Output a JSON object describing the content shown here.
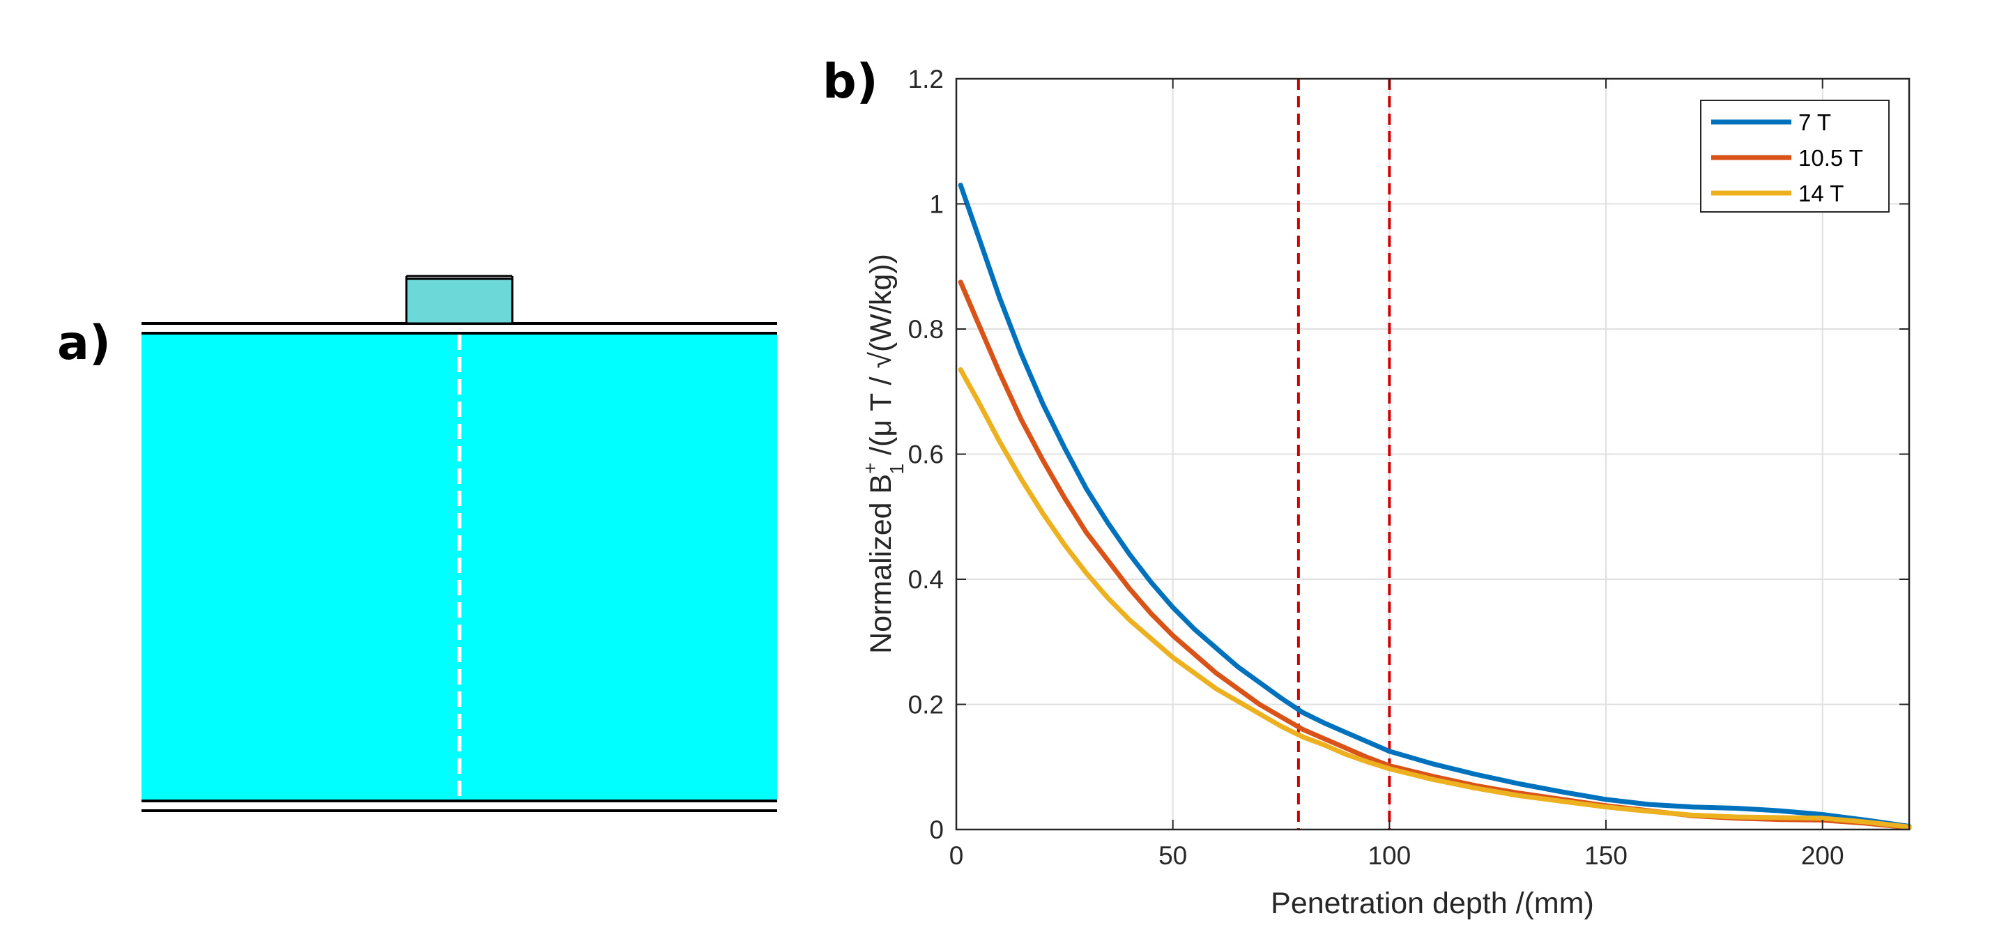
{
  "panel_a": {
    "label": "a)",
    "colors": {
      "phantom": "#00ffff",
      "coil": "#6dd8d8",
      "outline": "#000000",
      "profile_line": "#ffffff"
    }
  },
  "chart_data": {
    "type": "line",
    "panel_label": "b)",
    "title": "",
    "xlabel": "Penetration depth /(mm)",
    "ylabel": {
      "prefix": "Normalized B",
      "superscript": "+",
      "subscript": "1",
      "suffix": " /(μ T / √(W/kg))"
    },
    "xlim": [
      0,
      220
    ],
    "ylim": [
      0,
      1.2
    ],
    "xticks": [
      0,
      50,
      100,
      150,
      200
    ],
    "yticks": [
      0,
      0.2,
      0.4,
      0.6,
      0.8,
      1,
      1.2
    ],
    "xtick_labels": [
      "0",
      "50",
      "100",
      "150",
      "200"
    ],
    "ytick_labels": [
      "0",
      "0.2",
      "0.4",
      "0.6",
      "0.8",
      "1",
      "1.2"
    ],
    "grid": true,
    "legend_position": "top-right",
    "x": [
      1,
      5,
      10,
      15,
      20,
      25,
      30,
      35,
      40,
      45,
      50,
      55,
      60,
      65,
      70,
      75,
      80,
      85,
      90,
      95,
      100,
      110,
      120,
      130,
      140,
      150,
      160,
      170,
      180,
      190,
      200,
      210,
      220
    ],
    "series": [
      {
        "name": "7 T",
        "color": "#0072bd",
        "values": [
          1.03,
          0.95,
          0.85,
          0.76,
          0.68,
          0.61,
          0.545,
          0.49,
          0.44,
          0.395,
          0.355,
          0.32,
          0.29,
          0.26,
          0.235,
          0.21,
          0.187,
          0.17,
          0.155,
          0.14,
          0.125,
          0.105,
          0.088,
          0.073,
          0.06,
          0.048,
          0.04,
          0.036,
          0.034,
          0.03,
          0.024,
          0.015,
          0.005
        ]
      },
      {
        "name": "10.5 T",
        "color": "#d95319",
        "values": [
          0.875,
          0.81,
          0.73,
          0.655,
          0.59,
          0.53,
          0.475,
          0.43,
          0.385,
          0.345,
          0.31,
          0.28,
          0.25,
          0.225,
          0.2,
          0.18,
          0.16,
          0.145,
          0.13,
          0.115,
          0.102,
          0.085,
          0.07,
          0.058,
          0.048,
          0.038,
          0.03,
          0.022,
          0.018,
          0.016,
          0.015,
          0.01,
          0.003
        ]
      },
      {
        "name": "14 T",
        "color": "#edb120",
        "values": [
          0.735,
          0.685,
          0.62,
          0.56,
          0.505,
          0.455,
          0.41,
          0.37,
          0.335,
          0.305,
          0.275,
          0.25,
          0.225,
          0.205,
          0.185,
          0.165,
          0.148,
          0.135,
          0.12,
          0.108,
          0.097,
          0.08,
          0.066,
          0.054,
          0.045,
          0.036,
          0.029,
          0.023,
          0.02,
          0.019,
          0.018,
          0.012,
          0.004
        ]
      }
    ],
    "vlines": [
      {
        "x": 79,
        "color": "#d00000",
        "style": "dashed"
      },
      {
        "x": 100,
        "color": "#d00000",
        "style": "dashed"
      }
    ],
    "colors": {
      "axis": "#262626",
      "grid": "#e0e0e0"
    }
  }
}
